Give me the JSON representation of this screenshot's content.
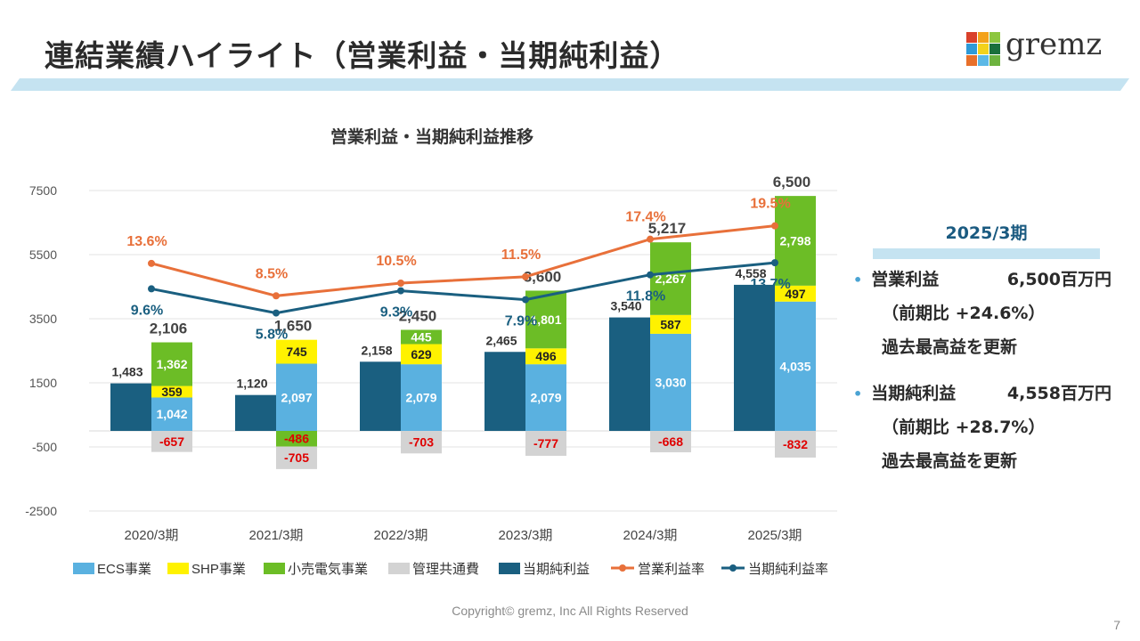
{
  "header": {
    "title": "連結業績ハイライト（営業利益・当期純利益）"
  },
  "logo": {
    "text": "gremz",
    "colors": [
      "#d9412b",
      "#f3a21b",
      "#8dc63f",
      "#2e9ad8",
      "#f3d21b",
      "#1a6f3c",
      "#e8702a",
      "#5bb8e6",
      "#6db33f"
    ]
  },
  "chart_data": {
    "type": "bar",
    "title": "営業利益・当期純利益推移",
    "categories": [
      "2020/3期",
      "2021/3期",
      "2022/3期",
      "2023/3期",
      "2024/3期",
      "2025/3期"
    ],
    "yticks": [
      "7500",
      "5500",
      "3500",
      "1500",
      "-500",
      "-2500"
    ],
    "ylim": [
      -2500,
      7500
    ],
    "grid": true,
    "legend_position": "bottom",
    "series": [
      {
        "name": "ECS事業",
        "color": "#5ab1e0",
        "values": [
          1042,
          2097,
          2079,
          2079,
          3030,
          4035
        ]
      },
      {
        "name": "SHP事業",
        "color": "#fff200",
        "values": [
          359,
          745,
          629,
          496,
          587,
          497
        ]
      },
      {
        "name": "小売電気事業",
        "color": "#6cbd26",
        "values": [
          1362,
          -486,
          445,
          1801,
          2267,
          2798
        ]
      },
      {
        "name": "管理共通費",
        "color": "#d3d3d3",
        "values": [
          -657,
          -705,
          -703,
          -777,
          -668,
          -832
        ]
      },
      {
        "name": "当期純利益",
        "color": "#1a5f80",
        "values": [
          1483,
          1120,
          2158,
          2465,
          3540,
          4558
        ]
      },
      {
        "name": "営業利益率",
        "color": "#e8703a",
        "values": [
          13.6,
          8.5,
          10.5,
          11.5,
          17.4,
          19.5
        ]
      },
      {
        "name": "当期純利益率",
        "color": "#1a5f80",
        "values": [
          9.6,
          5.8,
          9.3,
          7.9,
          11.8,
          13.7
        ]
      }
    ],
    "operating_totals": [
      2106,
      1650,
      2450,
      3600,
      5217,
      6500
    ],
    "data_labels": {
      "ecs": [
        "1,042",
        "2,097",
        "2,079",
        "2,079",
        "3,030",
        "4,035"
      ],
      "shp": [
        "359",
        "745",
        "629",
        "496",
        "587",
        "497"
      ],
      "retail": [
        "1,362",
        "-486",
        "445",
        "1,801",
        "2,267",
        "2,798"
      ],
      "mgmt": [
        "-657",
        "-705",
        "-703",
        "-777",
        "-668",
        "-832"
      ],
      "net": [
        "1,483",
        "1,120",
        "2,158",
        "2,465",
        "3,540",
        "4,558"
      ],
      "totals": [
        "2,106",
        "1,650",
        "2,450",
        "3,600",
        "5,217",
        "6,500"
      ],
      "op_rate": [
        "13.6%",
        "8.5%",
        "10.5%",
        "11.5%",
        "17.4%",
        "19.5%"
      ],
      "net_rate": [
        "9.6%",
        "5.8%",
        "9.3%",
        "7.9%",
        "11.8%",
        "13.7%"
      ]
    }
  },
  "summary": {
    "period": "2025/3期",
    "items": [
      {
        "label": "営業利益",
        "value": "6,500百万円",
        "change": "（前期比 +24.6%）",
        "note": "過去最高益を更新"
      },
      {
        "label": "当期純利益",
        "value": "4,558百万円",
        "change": "（前期比 +28.7%）",
        "note": "過去最高益を更新"
      }
    ]
  },
  "footer": {
    "copyright": "Copyright© gremz, Inc All Rights Reserved",
    "page": "7"
  }
}
